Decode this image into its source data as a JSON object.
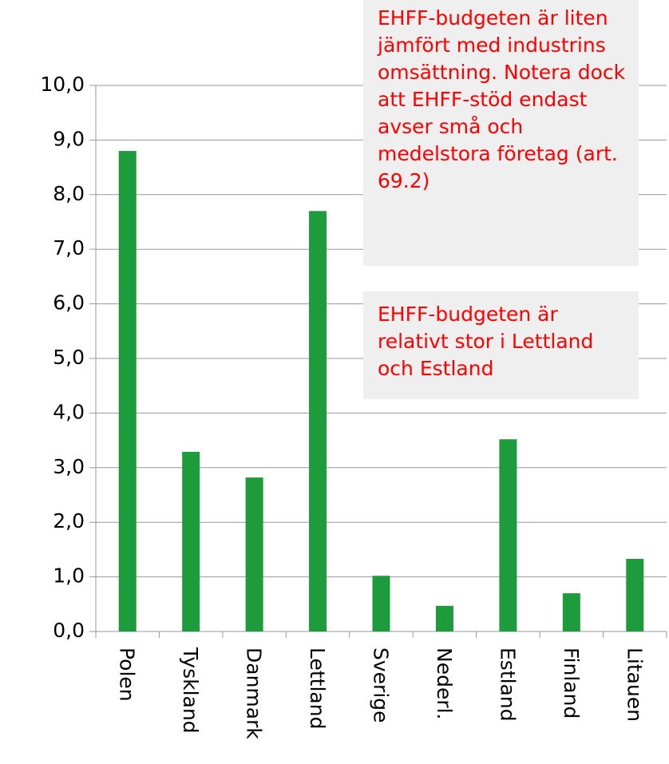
{
  "chart_data": {
    "type": "bar",
    "categories": [
      "Polen",
      "Tyskland",
      "Danmark",
      "Lettland",
      "Sverige",
      "Nederl.",
      "Estland",
      "Finland",
      "Litauen"
    ],
    "values": [
      8.8,
      3.29,
      2.82,
      7.7,
      1.02,
      0.47,
      3.52,
      0.7,
      1.33
    ],
    "color": "#1e9b3c",
    "ylim": [
      0,
      10
    ],
    "yticks": [
      {
        "value": 0,
        "label": "0,0"
      },
      {
        "value": 1,
        "label": "1,0"
      },
      {
        "value": 2,
        "label": "2,0"
      },
      {
        "value": 3,
        "label": "3,0"
      },
      {
        "value": 4,
        "label": "4,0"
      },
      {
        "value": 5,
        "label": "5,0"
      },
      {
        "value": 6,
        "label": "6,0"
      },
      {
        "value": 7,
        "label": "7,0"
      },
      {
        "value": 8,
        "label": "8,0"
      },
      {
        "value": 9,
        "label": "9,0"
      },
      {
        "value": 10,
        "label": "10,0"
      }
    ],
    "grid": true,
    "annotations": [
      "EHFF-budgeten är liten jämfört med industrins omsättning. Notera dock att EHFF-stöd endast avser små och medelstora företag (art. 69.2)",
      "EHFF-budgeten är relativt stor i Lettland och Estland"
    ]
  }
}
